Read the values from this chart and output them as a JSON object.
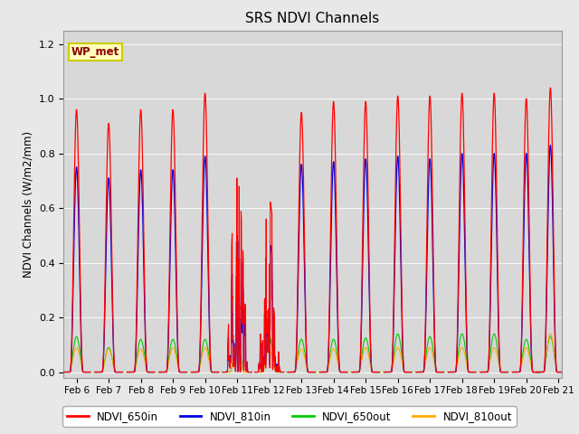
{
  "title": "SRS NDVI Channels",
  "ylabel": "NDVI Channels (W/m2/mm)",
  "xlim_days": [
    5.6,
    21.1
  ],
  "ylim": [
    -0.02,
    1.25
  ],
  "yticks": [
    0.0,
    0.2,
    0.4,
    0.6,
    0.8,
    1.0,
    1.2
  ],
  "background_color": "#e8e8e8",
  "plot_bg_color": "#d8d8d8",
  "legend_label": "WP_met",
  "series_colors": {
    "NDVI_650in": "#ff0000",
    "NDVI_810in": "#0000dd",
    "NDVI_650out": "#00cc00",
    "NDVI_810out": "#ffaa00"
  },
  "x_tick_labels": [
    "Feb 6",
    "Feb 7",
    "Feb 8",
    "Feb 9",
    "Feb 10",
    "Feb 11",
    "Feb 12",
    "Feb 13",
    "Feb 14",
    "Feb 15",
    "Feb 16",
    "Feb 17",
    "Feb 18",
    "Feb 19",
    "Feb 20",
    "Feb 21"
  ],
  "x_tick_positions": [
    6,
    7,
    8,
    9,
    10,
    11,
    12,
    13,
    14,
    15,
    16,
    17,
    18,
    19,
    20,
    21
  ],
  "days_params": [
    {
      "day": 6,
      "pr": 0.96,
      "pb": 0.75,
      "pg": 0.13,
      "po": 0.09,
      "cloudy": false
    },
    {
      "day": 7,
      "pr": 0.91,
      "pb": 0.71,
      "pg": 0.09,
      "po": 0.085,
      "cloudy": false
    },
    {
      "day": 8,
      "pr": 0.96,
      "pb": 0.74,
      "pg": 0.12,
      "po": 0.085,
      "cloudy": false
    },
    {
      "day": 9,
      "pr": 0.96,
      "pb": 0.74,
      "pg": 0.12,
      "po": 0.09,
      "cloudy": false
    },
    {
      "day": 10,
      "pr": 1.02,
      "pb": 0.79,
      "pg": 0.12,
      "po": 0.09,
      "cloudy": false
    },
    {
      "day": 11,
      "pr": 0.71,
      "pb": 0.5,
      "pg": 0.1,
      "po": 0.08,
      "cloudy": true
    },
    {
      "day": 12,
      "pr": 0.63,
      "pb": 0.47,
      "pg": 0.13,
      "po": 0.08,
      "cloudy": true
    },
    {
      "day": 13,
      "pr": 0.95,
      "pb": 0.76,
      "pg": 0.12,
      "po": 0.085,
      "cloudy": false
    },
    {
      "day": 14,
      "pr": 0.99,
      "pb": 0.77,
      "pg": 0.12,
      "po": 0.085,
      "cloudy": false
    },
    {
      "day": 15,
      "pr": 0.99,
      "pb": 0.78,
      "pg": 0.125,
      "po": 0.09,
      "cloudy": false
    },
    {
      "day": 16,
      "pr": 1.01,
      "pb": 0.79,
      "pg": 0.14,
      "po": 0.09,
      "cloudy": false
    },
    {
      "day": 17,
      "pr": 1.01,
      "pb": 0.78,
      "pg": 0.13,
      "po": 0.09,
      "cloudy": false
    },
    {
      "day": 18,
      "pr": 1.02,
      "pb": 0.8,
      "pg": 0.14,
      "po": 0.09,
      "cloudy": false
    },
    {
      "day": 19,
      "pr": 1.02,
      "pb": 0.8,
      "pg": 0.14,
      "po": 0.09,
      "cloudy": false
    },
    {
      "day": 20,
      "pr": 1.0,
      "pb": 0.8,
      "pg": 0.12,
      "po": 0.09,
      "cloudy": false
    },
    {
      "day": 20.75,
      "pr": 1.04,
      "pb": 0.83,
      "pg": 0.13,
      "po": 0.14,
      "cloudy": false
    }
  ]
}
